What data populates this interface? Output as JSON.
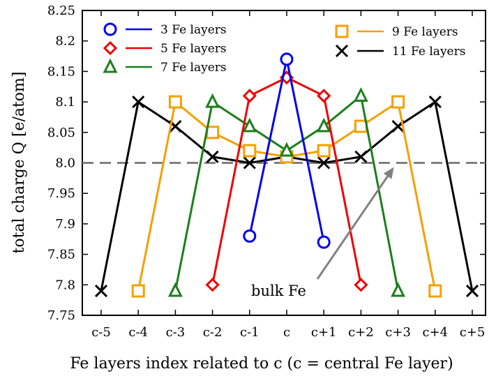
{
  "chart_data": {
    "type": "line",
    "xlabel": "Fe layers index related to c (c = central Fe layer)",
    "ylabel": "total charge Q [e/atom]",
    "categories": [
      "c-5",
      "c-4",
      "c-3",
      "c-2",
      "c-1",
      "c",
      "c+1",
      "c+2",
      "c+3",
      "c+4",
      "c+5"
    ],
    "ylim": [
      7.75,
      8.25
    ],
    "yticks": [
      "7.75",
      "7.8",
      "7.85",
      "7.9",
      "7.95",
      "8.0",
      "8.05",
      "8.1",
      "8.15",
      "8.2",
      "8.25"
    ],
    "reference_line": {
      "y": 8.0,
      "color": "#808080",
      "style": "dashed"
    },
    "annotation": {
      "text": "bulk Fe",
      "arrow_to": {
        "x": "c+3",
        "y": 8.0
      }
    },
    "legend": [
      {
        "series": 0,
        "placement": "top-left"
      },
      {
        "series": 1,
        "placement": "top-left"
      },
      {
        "series": 2,
        "placement": "top-left"
      },
      {
        "series": 3,
        "placement": "top-right"
      },
      {
        "series": 4,
        "placement": "top-right"
      }
    ],
    "series": [
      {
        "name": "3 Fe layers",
        "color": "#0000ee",
        "marker": "circle",
        "x": [
          "c-1",
          "c",
          "c+1"
        ],
        "values": [
          7.88,
          8.17,
          7.87
        ]
      },
      {
        "name": "5 Fe layers",
        "color": "#ee0000",
        "marker": "diamond",
        "x": [
          "c-2",
          "c-1",
          "c",
          "c+1",
          "c+2"
        ],
        "values": [
          7.8,
          8.11,
          8.14,
          8.11,
          7.8
        ]
      },
      {
        "name": "7 Fe layers",
        "color": "#1a7f1a",
        "marker": "triangle",
        "x": [
          "c-3",
          "c-2",
          "c-1",
          "c",
          "c+1",
          "c+2",
          "c+3"
        ],
        "values": [
          7.79,
          8.1,
          8.06,
          8.02,
          8.06,
          8.11,
          7.79
        ]
      },
      {
        "name": "9 Fe layers",
        "color": "#f5a000",
        "marker": "square",
        "x": [
          "c-4",
          "c-3",
          "c-2",
          "c-1",
          "c",
          "c+1",
          "c+2",
          "c+3",
          "c+4"
        ],
        "values": [
          7.79,
          8.1,
          8.05,
          8.02,
          8.01,
          8.02,
          8.06,
          8.1,
          7.79
        ]
      },
      {
        "name": "11 Fe layers",
        "color": "#000000",
        "marker": "cross",
        "x": [
          "c-5",
          "c-4",
          "c-3",
          "c-2",
          "c-1",
          "c",
          "c+1",
          "c+2",
          "c+3",
          "c+4",
          "c+5"
        ],
        "values": [
          7.79,
          8.1,
          8.06,
          8.01,
          8.0,
          8.01,
          8.0,
          8.01,
          8.06,
          8.1,
          7.79
        ]
      }
    ]
  }
}
